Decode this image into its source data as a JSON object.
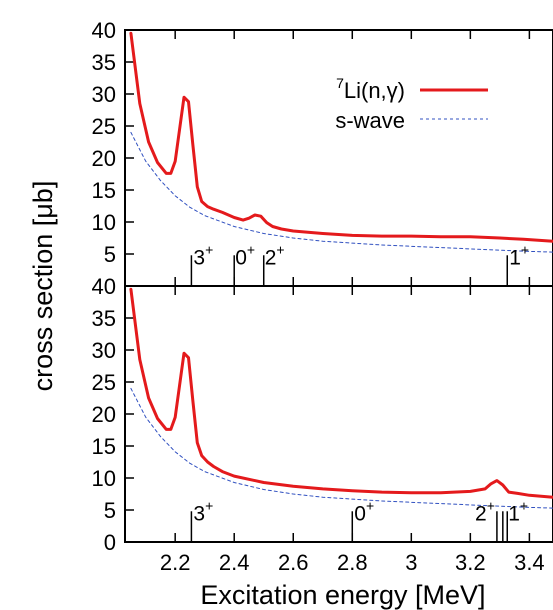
{
  "chart_data": {
    "type": "line",
    "xlabel": "Excitation energy [MeV]",
    "ylabel": "cross section [μb]",
    "xlim": [
      2.03,
      3.48
    ],
    "x_ticks": [
      "2.2",
      "2.4",
      "2.6",
      "2.8",
      "3",
      "3.2",
      "3.4"
    ],
    "x_tick_values": [
      2.2,
      2.4,
      2.6,
      2.8,
      3.0,
      3.2,
      3.4
    ],
    "legend": {
      "placement": "top-right",
      "entries": [
        {
          "sup": "7",
          "label": "Li(n,γ)",
          "color": "#e41a1c",
          "style": "solid"
        },
        {
          "sup": "",
          "label": "s-wave",
          "color": "#3050c0",
          "style": "dashed"
        }
      ]
    },
    "panels": [
      {
        "ylim": [
          0,
          40
        ],
        "y_ticks": [
          "40",
          "35",
          "30",
          "25",
          "20",
          "15",
          "10",
          "5"
        ],
        "y_tick_values": [
          40,
          35,
          30,
          25,
          20,
          15,
          10,
          5
        ],
        "series": [
          {
            "name": "7Li(n,γ)",
            "x": [
              2.05,
              2.08,
              2.11,
              2.14,
              2.17,
              2.185,
              2.2,
              2.215,
              2.23,
              2.245,
              2.26,
              2.275,
              2.29,
              2.31,
              2.33,
              2.36,
              2.4,
              2.43,
              2.45,
              2.47,
              2.49,
              2.51,
              2.53,
              2.56,
              2.6,
              2.7,
              2.8,
              2.9,
              3.0,
              3.1,
              3.2,
              3.3,
              3.38,
              3.48
            ],
            "y": [
              39.5,
              28.5,
              22.5,
              19.3,
              17.6,
              17.6,
              19.5,
              24.5,
              29.5,
              28.8,
              22.0,
              15.5,
              13.2,
              12.4,
              12.0,
              11.5,
              10.7,
              10.3,
              10.6,
              11.1,
              10.9,
              9.9,
              9.3,
              8.9,
              8.6,
              8.2,
              7.9,
              7.8,
              7.8,
              7.7,
              7.7,
              7.5,
              7.3,
              7.0
            ]
          },
          {
            "name": "s-wave",
            "x": [
              2.05,
              2.1,
              2.15,
              2.2,
              2.25,
              2.3,
              2.4,
              2.5,
              2.6,
              2.7,
              2.8,
              2.9,
              3.0,
              3.1,
              3.2,
              3.3,
              3.4,
              3.48
            ],
            "y": [
              24.0,
              19.5,
              16.5,
              14.1,
              12.3,
              11.0,
              9.3,
              8.2,
              7.5,
              7.0,
              6.7,
              6.4,
              6.2,
              6.0,
              5.8,
              5.6,
              5.4,
              5.3
            ]
          }
        ],
        "levels": [
          {
            "energy": 2.255,
            "height": 4.8,
            "label": "3",
            "sup": "+",
            "dx": 2,
            "anchor": "start"
          },
          {
            "energy": 2.4,
            "height": 4.8,
            "label": "0",
            "sup": "+",
            "dx": 1,
            "anchor": "start"
          },
          {
            "energy": 2.5,
            "height": 4.8,
            "label": "2",
            "sup": "+",
            "dx": 1,
            "anchor": "start"
          },
          {
            "energy": 3.325,
            "height": 4.8,
            "label": "1",
            "sup": "+",
            "dx": 2,
            "anchor": "start"
          }
        ]
      },
      {
        "ylim": [
          0,
          40
        ],
        "y_ticks": [
          "40",
          "35",
          "30",
          "25",
          "20",
          "15",
          "10",
          "5",
          "0"
        ],
        "y_tick_values": [
          40,
          35,
          30,
          25,
          20,
          15,
          10,
          5,
          0
        ],
        "series": [
          {
            "name": "7Li(n,γ)",
            "x": [
              2.05,
              2.08,
              2.11,
              2.14,
              2.17,
              2.185,
              2.2,
              2.215,
              2.23,
              2.245,
              2.26,
              2.275,
              2.29,
              2.31,
              2.33,
              2.36,
              2.4,
              2.5,
              2.6,
              2.7,
              2.8,
              2.9,
              3.0,
              3.1,
              3.2,
              3.25,
              3.27,
              3.29,
              3.31,
              3.33,
              3.36,
              3.4,
              3.48
            ],
            "y": [
              39.5,
              28.5,
              22.5,
              19.3,
              17.6,
              17.6,
              19.5,
              24.5,
              29.5,
              28.8,
              22.0,
              15.5,
              13.5,
              12.5,
              11.8,
              11.0,
              10.3,
              9.3,
              8.7,
              8.3,
              8.0,
              7.8,
              7.7,
              7.7,
              7.9,
              8.3,
              9.1,
              9.6,
              8.9,
              7.8,
              7.6,
              7.3,
              7.0
            ]
          },
          {
            "name": "s-wave",
            "x": [
              2.05,
              2.1,
              2.15,
              2.2,
              2.25,
              2.3,
              2.4,
              2.5,
              2.6,
              2.7,
              2.8,
              2.9,
              3.0,
              3.1,
              3.2,
              3.3,
              3.4,
              3.48
            ],
            "y": [
              24.0,
              19.5,
              16.5,
              14.1,
              12.3,
              11.0,
              9.3,
              8.2,
              7.5,
              7.0,
              6.7,
              6.4,
              6.2,
              6.0,
              5.8,
              5.6,
              5.4,
              5.3
            ]
          }
        ],
        "levels": [
          {
            "energy": 2.255,
            "height": 4.8,
            "label": "3",
            "sup": "+",
            "dx": 2,
            "anchor": "start"
          },
          {
            "energy": 2.8,
            "height": 4.8,
            "label": "0",
            "sup": "+",
            "dx": 2,
            "anchor": "start"
          },
          {
            "energy": 3.29,
            "height": 4.8,
            "label": "2",
            "sup": "+",
            "dx": -2,
            "anchor": "end"
          },
          {
            "energy": 3.31,
            "height": 4.8,
            "label": "",
            "sup": "",
            "dx": 0,
            "anchor": "start"
          },
          {
            "energy": 3.325,
            "height": 4.8,
            "label": "1",
            "sup": "+",
            "dx": 1,
            "anchor": "start"
          }
        ]
      }
    ]
  }
}
